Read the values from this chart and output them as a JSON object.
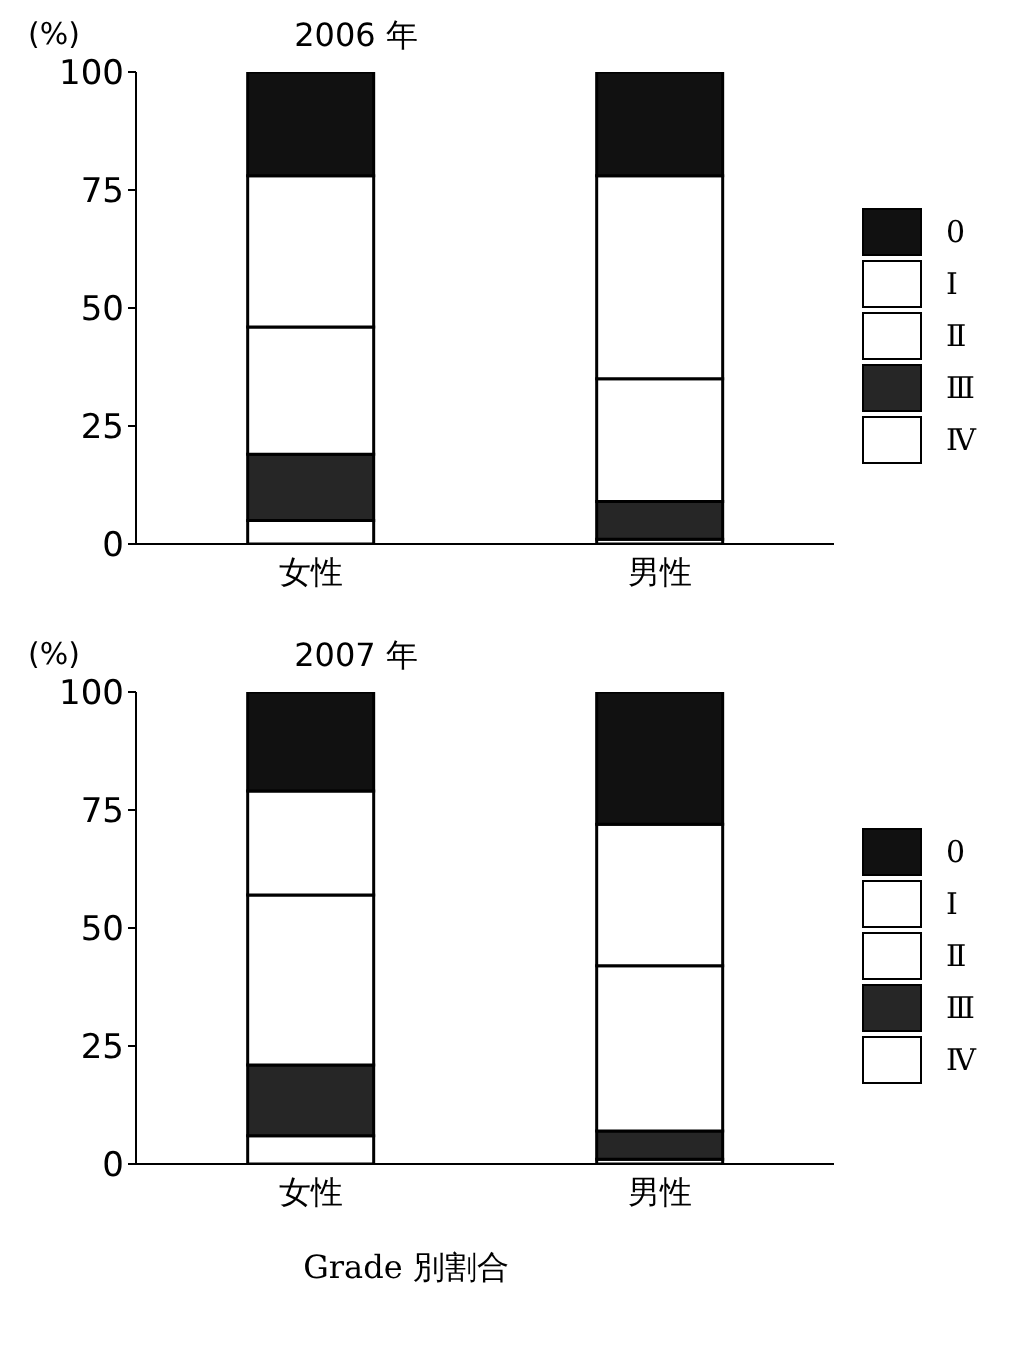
{
  "chart_data": [
    {
      "type": "bar",
      "title": "2006 年",
      "ylabel": "(%)",
      "categories": [
        "女性",
        "男性"
      ],
      "stacked": true,
      "ylim": [
        0,
        100
      ],
      "yticks": [
        0,
        25,
        50,
        75,
        100
      ],
      "grid": false,
      "legend": "right",
      "series": [
        {
          "name": "Ⅳ",
          "color": "#ffffff",
          "values": [
            5,
            1
          ]
        },
        {
          "name": "Ⅲ",
          "color": "#262626",
          "values": [
            14,
            8
          ]
        },
        {
          "name": "Ⅱ",
          "color": "#ffffff",
          "values": [
            27,
            26
          ]
        },
        {
          "name": "Ⅰ",
          "color": "#ffffff",
          "values": [
            32,
            43
          ]
        },
        {
          "name": "0",
          "color": "#111111",
          "values": [
            22,
            22
          ]
        }
      ]
    },
    {
      "type": "bar",
      "title": "2007 年",
      "ylabel": "(%)",
      "categories": [
        "女性",
        "男性"
      ],
      "stacked": true,
      "ylim": [
        0,
        100
      ],
      "yticks": [
        0,
        25,
        50,
        75,
        100
      ],
      "grid": false,
      "legend": "right",
      "annotations": [
        "Grade 別割合"
      ],
      "series": [
        {
          "name": "Ⅳ",
          "color": "#ffffff",
          "values": [
            6,
            1
          ]
        },
        {
          "name": "Ⅲ",
          "color": "#262626",
          "values": [
            15,
            6
          ]
        },
        {
          "name": "Ⅱ",
          "color": "#ffffff",
          "values": [
            36,
            35
          ]
        },
        {
          "name": "Ⅰ",
          "color": "#ffffff",
          "values": [
            22,
            30
          ]
        },
        {
          "name": "0",
          "color": "#111111",
          "values": [
            21,
            28
          ]
        }
      ]
    }
  ]
}
